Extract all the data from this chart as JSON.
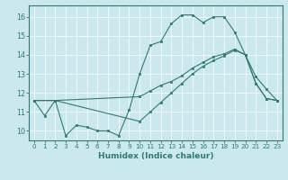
{
  "xlabel": "Humidex (Indice chaleur)",
  "background_color": "#cce8ef",
  "grid_color": "#ffffff",
  "line_color": "#2d7d6f",
  "xlim": [
    -0.5,
    23.5
  ],
  "ylim": [
    9.5,
    16.6
  ],
  "yticks": [
    10,
    11,
    12,
    13,
    14,
    15,
    16
  ],
  "xticks": [
    0,
    1,
    2,
    3,
    4,
    5,
    6,
    7,
    8,
    9,
    10,
    11,
    12,
    13,
    14,
    15,
    16,
    17,
    18,
    19,
    20,
    21,
    22,
    23
  ],
  "line1_x": [
    0,
    1,
    2,
    3,
    4,
    5,
    6,
    7,
    8,
    9,
    10,
    11,
    12,
    13,
    14,
    15,
    16,
    17,
    18,
    19,
    20,
    21,
    22,
    23
  ],
  "line1_y": [
    11.6,
    10.8,
    11.6,
    9.75,
    10.3,
    10.2,
    10.0,
    10.0,
    9.75,
    11.1,
    13.0,
    14.5,
    14.7,
    15.65,
    16.1,
    16.1,
    15.7,
    16.0,
    16.0,
    15.2,
    14.0,
    12.85,
    12.2,
    11.6
  ],
  "line2_x": [
    0,
    2,
    10,
    11,
    12,
    13,
    14,
    15,
    16,
    17,
    18,
    19,
    20,
    21,
    22,
    23
  ],
  "line2_y": [
    11.6,
    11.6,
    11.8,
    12.1,
    12.4,
    12.6,
    12.9,
    13.3,
    13.6,
    13.9,
    14.05,
    14.3,
    14.0,
    12.5,
    11.7,
    11.6
  ],
  "line3_x": [
    0,
    2,
    10,
    11,
    12,
    13,
    14,
    15,
    16,
    17,
    18,
    19,
    20,
    21,
    22,
    23
  ],
  "line3_y": [
    11.6,
    11.6,
    10.5,
    11.0,
    11.5,
    12.0,
    12.5,
    13.0,
    13.4,
    13.7,
    13.95,
    14.25,
    14.0,
    12.5,
    11.7,
    11.6
  ]
}
